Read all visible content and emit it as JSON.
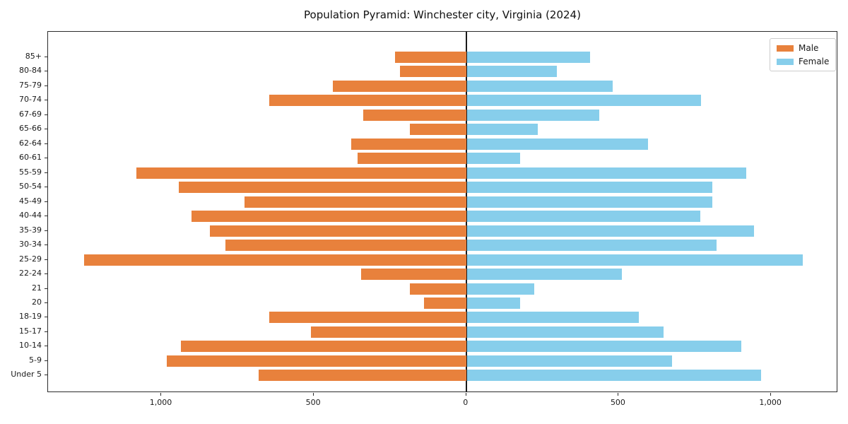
{
  "colors": {
    "male": "#E8813C",
    "female": "#87CEEB",
    "axis": "#2B2B2B",
    "zero_line": "#1A1A1A",
    "background": "#FFFFFF",
    "legend_border": "#CCCCCC"
  },
  "legend": {
    "male_label": "Male",
    "female_label": "Female"
  },
  "chart_data": {
    "type": "bar",
    "orientation": "horizontal-pyramid",
    "title": "Population Pyramid: Winchester city, Virginia (2024)",
    "xlabel": "",
    "ylabel": "",
    "grid": false,
    "legend_position": "upper right",
    "xlim": [
      -1372,
      1220
    ],
    "x_ticks": [
      {
        "value": -1000,
        "label": "1,000"
      },
      {
        "value": -500,
        "label": "500"
      },
      {
        "value": 0,
        "label": "0"
      },
      {
        "value": 500,
        "label": "500"
      },
      {
        "value": 1000,
        "label": "1,000"
      }
    ],
    "categories": [
      "85+",
      "80-84",
      "75-79",
      "70-74",
      "67-69",
      "65-66",
      "62-64",
      "60-61",
      "55-59",
      "50-54",
      "45-49",
      "40-44",
      "35-39",
      "30-34",
      "25-29",
      "22-24",
      "21",
      "20",
      "18-19",
      "15-17",
      "10-14",
      "5-9",
      "Under 5"
    ],
    "series": [
      {
        "name": "Male",
        "side": "left",
        "color": "#E8813C",
        "values": [
          234,
          218,
          437,
          647,
          339,
          186,
          378,
          357,
          1082,
          944,
          727,
          901,
          841,
          791,
          1254,
          345,
          186,
          138,
          647,
          510,
          936,
          982,
          681
        ]
      },
      {
        "name": "Female",
        "side": "right",
        "color": "#87CEEB",
        "values": [
          405,
          294,
          477,
          767,
          434,
          233,
          593,
          174,
          917,
          804,
          804,
          766,
          942,
          818,
          1102,
          509,
          221,
          175,
          564,
          646,
          899,
          673,
          966
        ]
      }
    ]
  }
}
